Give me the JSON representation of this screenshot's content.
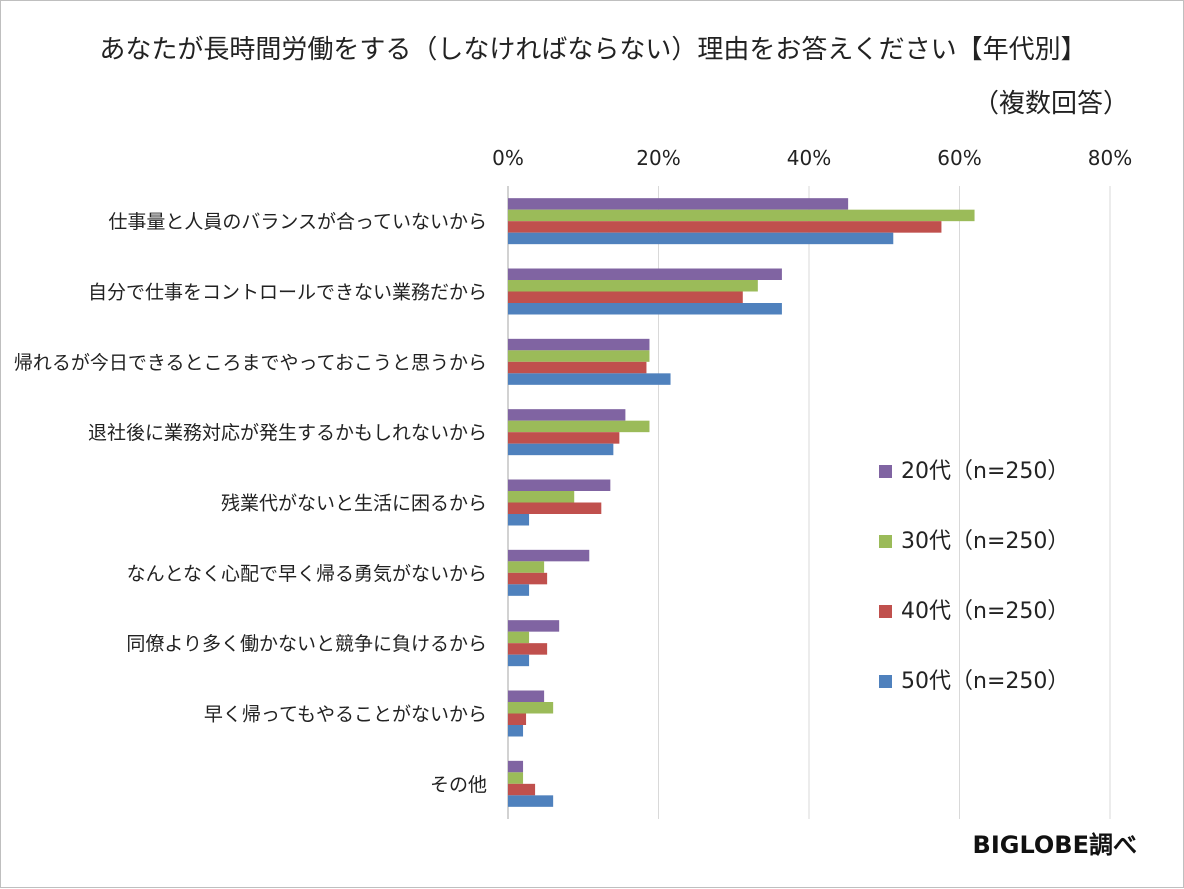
{
  "chart_data": {
    "type": "bar",
    "orientation": "horizontal",
    "title": "あなたが長時間労働をする（しなければならない）理由をお答えください【年代別】",
    "subtitle": "（複数回答）",
    "credit": "BIGLOBE調べ",
    "xlim": [
      0,
      80
    ],
    "x_ticks": [
      "0%",
      "20%",
      "40%",
      "60%",
      "80%"
    ],
    "x_tick_values": [
      0,
      20,
      40,
      60,
      80
    ],
    "x_axis_position": "top",
    "grid": true,
    "legend_position": "right",
    "categories": [
      "仕事量と人員のバランスが合っていないから",
      "自分で仕事をコントロールできない業務だから",
      "帰れるが今日できるところまでやっておこうと思うから",
      "退社後に業務対応が発生するかもしれないから",
      "残業代がないと生活に困るから",
      "なんとなく心配で早く帰る勇気がないから",
      "同僚より多く働かないと競争に負けるから",
      "早く帰ってもやることがないから",
      "その他"
    ],
    "series": [
      {
        "name": "20代（n=250）",
        "color": "#8064A2",
        "values": [
          45.2,
          36.4,
          18.8,
          15.6,
          13.6,
          10.8,
          6.8,
          4.8,
          2.0
        ]
      },
      {
        "name": "30代（n=250）",
        "color": "#9BBB59",
        "values": [
          62.0,
          33.2,
          18.8,
          18.8,
          8.8,
          4.8,
          2.8,
          6.0,
          2.0
        ]
      },
      {
        "name": "40代（n=250）",
        "color": "#C0504D",
        "values": [
          57.6,
          31.2,
          18.4,
          14.8,
          12.4,
          5.2,
          5.2,
          2.4,
          3.6
        ]
      },
      {
        "name": "50代（n=250）",
        "color": "#4F81BD",
        "values": [
          51.2,
          36.4,
          21.6,
          14.0,
          2.8,
          2.8,
          2.8,
          2.0,
          6.0
        ]
      }
    ]
  }
}
